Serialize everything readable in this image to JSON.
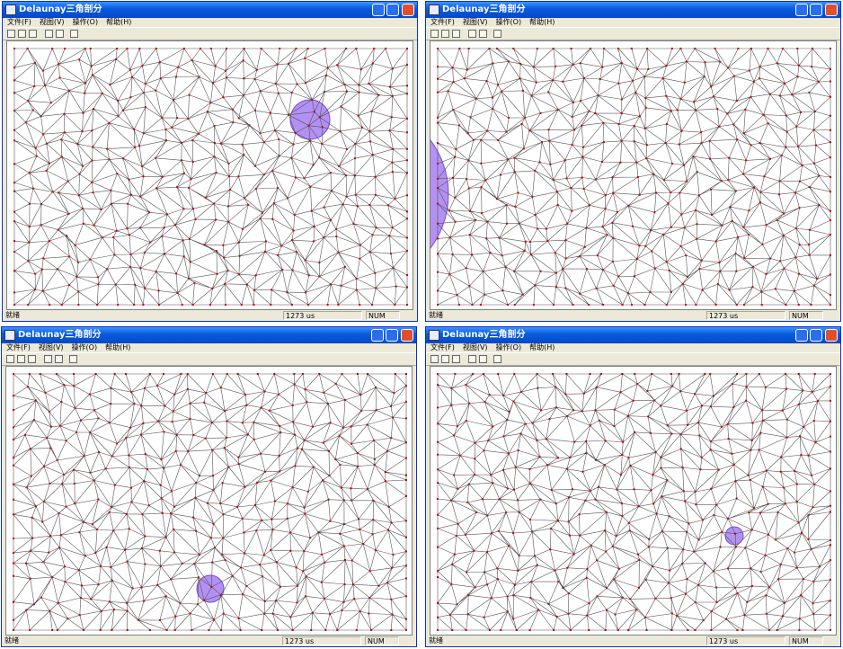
{
  "windows": [
    {
      "title": "Delaunay三角剖分",
      "menu": [
        "文件(F)",
        "视图(V)",
        "操作(O)",
        "帮助(H)"
      ],
      "status": {
        "message": "就绪",
        "time": "1273 us",
        "indicator": "NUM"
      }
    },
    {
      "title": "Delaunay三角剖分",
      "menu": [
        "文件(F)",
        "视图(V)",
        "操作(O)",
        "帮助(H)"
      ],
      "status": {
        "message": "就绪",
        "time": "1273 us",
        "indicator": "NUM"
      }
    },
    {
      "title": "Delaunay三角剖分",
      "menu": [
        "文件(F)",
        "视图(V)",
        "操作(O)",
        "帮助(H)"
      ],
      "status": {
        "message": "就绪",
        "time": "1273 us",
        "indicator": "NUM"
      }
    },
    {
      "title": "Delaunay三角剖分",
      "menu": [
        "文件(F)",
        "视图(V)",
        "操作(O)",
        "帮助(H)"
      ],
      "status": {
        "message": "就绪",
        "time": "1273 us",
        "indicator": "NUM"
      }
    }
  ]
}
